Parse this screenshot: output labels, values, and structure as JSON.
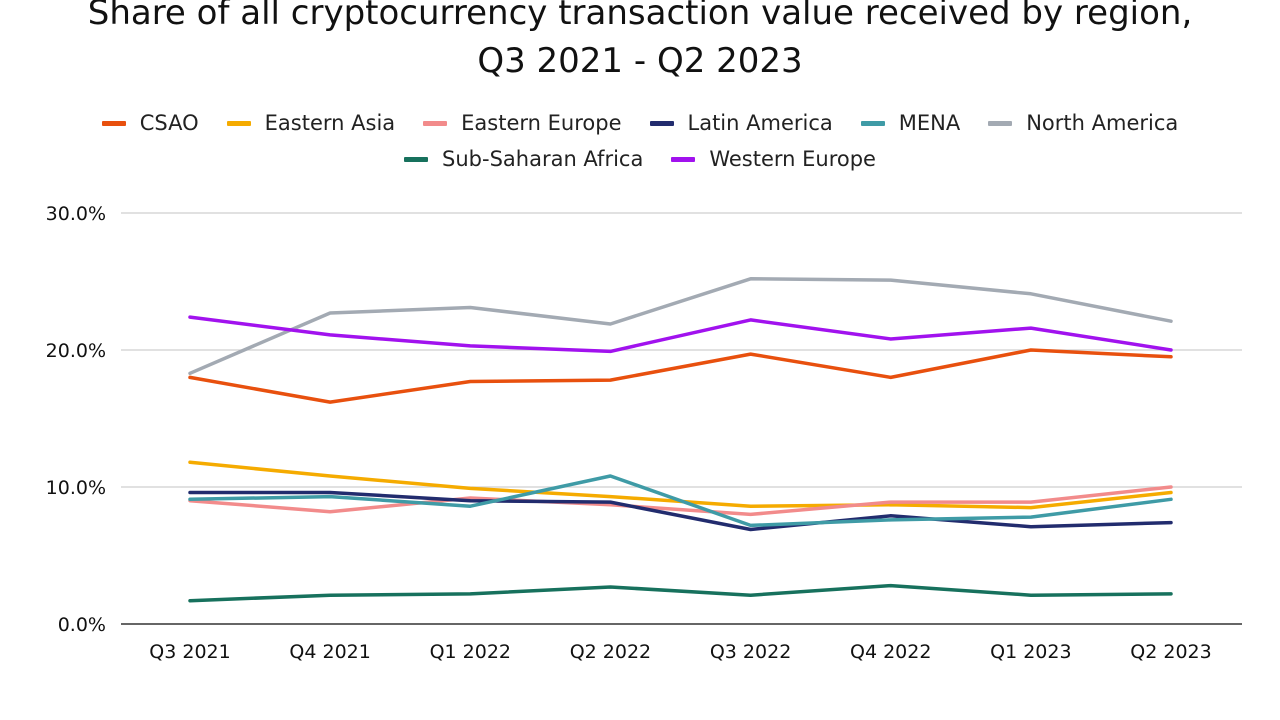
{
  "chart_data": {
    "type": "line",
    "title_line1": "Share of all cryptocurrency transaction value received by region,",
    "title_line2": "Q3 2021 - Q2 2023",
    "categories": [
      "Q3 2021",
      "Q4 2021",
      "Q1 2022",
      "Q2 2022",
      "Q3 2022",
      "Q4 2022",
      "Q1 2023",
      "Q2 2023"
    ],
    "yticks": [
      "0.0%",
      "10.0%",
      "20.0%",
      "30.0%"
    ],
    "ylim": [
      0,
      30
    ],
    "grid": true,
    "legend_position": "top",
    "series": [
      {
        "name": "CSAO",
        "color": "#e8500e",
        "values": [
          18.0,
          16.2,
          17.7,
          17.8,
          19.7,
          18.0,
          20.0,
          19.5
        ]
      },
      {
        "name": "Eastern Asia",
        "color": "#f5ab00",
        "values": [
          11.8,
          10.8,
          9.9,
          9.3,
          8.6,
          8.7,
          8.5,
          9.6
        ]
      },
      {
        "name": "Eastern Europe",
        "color": "#f28b8b",
        "values": [
          9.0,
          8.2,
          9.2,
          8.7,
          8.0,
          8.9,
          8.9,
          10.0
        ]
      },
      {
        "name": "Latin America",
        "color": "#222c6e",
        "values": [
          9.6,
          9.6,
          9.0,
          8.9,
          6.9,
          7.9,
          7.1,
          7.4
        ]
      },
      {
        "name": "MENA",
        "color": "#3f9ba6",
        "values": [
          9.1,
          9.3,
          8.6,
          10.8,
          7.2,
          7.6,
          7.8,
          9.1
        ]
      },
      {
        "name": "North America",
        "color": "#a3aab3",
        "values": [
          18.3,
          22.7,
          23.1,
          21.9,
          25.2,
          25.1,
          24.1,
          22.1
        ]
      },
      {
        "name": "Sub-Saharan Africa",
        "color": "#17715d",
        "values": [
          1.7,
          2.1,
          2.2,
          2.7,
          2.1,
          2.8,
          2.1,
          2.2
        ]
      },
      {
        "name": "Western Europe",
        "color": "#a112ee",
        "values": [
          22.4,
          21.1,
          20.3,
          19.9,
          22.2,
          20.8,
          21.6,
          20.0
        ]
      }
    ]
  }
}
